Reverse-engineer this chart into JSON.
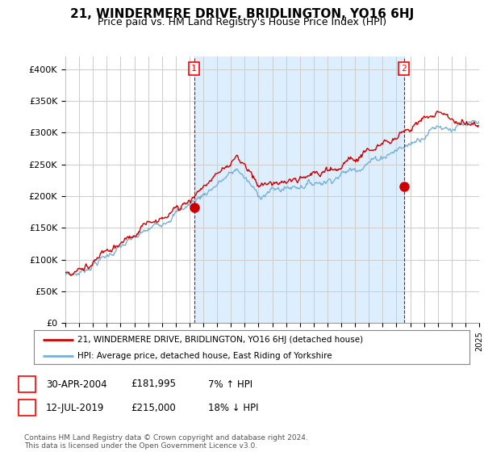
{
  "title": "21, WINDERMERE DRIVE, BRIDLINGTON, YO16 6HJ",
  "subtitle": "Price paid vs. HM Land Registry's House Price Index (HPI)",
  "title_fontsize": 11,
  "subtitle_fontsize": 9,
  "background_color": "#ffffff",
  "grid_color": "#cccccc",
  "plot_bg": "#ffffff",
  "fill_color": "#ddeeff",
  "ylim": [
    0,
    420000
  ],
  "yticks": [
    0,
    50000,
    100000,
    150000,
    200000,
    250000,
    300000,
    350000,
    400000
  ],
  "ytick_labels": [
    "£0",
    "£50K",
    "£100K",
    "£150K",
    "£200K",
    "£250K",
    "£300K",
    "£350K",
    "£400K"
  ],
  "xlim": [
    1995,
    2025
  ],
  "sale1_x": 2004.33,
  "sale1_y": 181995,
  "sale1_label": "1",
  "sale1_date": "30-APR-2004",
  "sale1_price": "£181,995",
  "sale1_hpi": "7% ↑ HPI",
  "sale2_x": 2019.54,
  "sale2_y": 215000,
  "sale2_label": "2",
  "sale2_date": "12-JUL-2019",
  "sale2_price": "£215,000",
  "sale2_hpi": "18% ↓ HPI",
  "line_red": "#cc0000",
  "line_blue": "#7ab0d4",
  "vline_color": "#cc0000",
  "legend1_text": "21, WINDERMERE DRIVE, BRIDLINGTON, YO16 6HJ (detached house)",
  "legend2_text": "HPI: Average price, detached house, East Riding of Yorkshire",
  "footer1": "Contains HM Land Registry data © Crown copyright and database right 2024.",
  "footer2": "This data is licensed under the Open Government Licence v3.0."
}
